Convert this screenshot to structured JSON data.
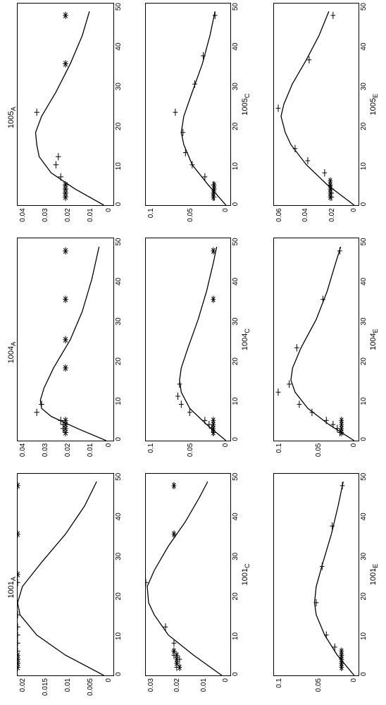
{
  "figure": {
    "rows": 3,
    "cols": 3,
    "background_color": "#ffffff",
    "font_family": "Arial",
    "title_fontsize": 11,
    "tick_fontsize": 10,
    "line_color": "#000000",
    "marker_color": "#000000",
    "line_width": 1.3,
    "marker_size": 4,
    "panels": [
      {
        "id": "p1001A",
        "title": "1001_A",
        "xlabel": "",
        "xlim": [
          0,
          50
        ],
        "xticks": [
          0,
          10,
          20,
          30,
          40,
          50
        ],
        "ylim": [
          0,
          0.02
        ],
        "yticks": [
          0.02,
          0.015,
          0.01,
          0.005,
          0
        ],
        "curve": [
          [
            0,
            0.002
          ],
          [
            5,
            0.01
          ],
          [
            10,
            0.016
          ],
          [
            15,
            0.0195
          ],
          [
            18,
            0.02
          ],
          [
            22,
            0.019
          ],
          [
            28,
            0.015
          ],
          [
            35,
            0.01
          ],
          [
            42,
            0.006
          ],
          [
            48,
            0.0035
          ]
        ],
        "plus": [
          [
            2,
            0.02
          ],
          [
            3,
            0.02
          ],
          [
            4,
            0.02
          ],
          [
            6,
            0.02
          ],
          [
            8,
            0.02
          ],
          [
            10,
            0.02
          ],
          [
            12,
            0.02
          ],
          [
            15,
            0.02
          ],
          [
            23,
            0.02
          ]
        ],
        "star": [
          [
            2,
            0.02
          ],
          [
            3,
            0.02
          ],
          [
            4,
            0.02
          ],
          [
            5,
            0.02
          ],
          [
            25,
            0.02
          ],
          [
            35,
            0.02
          ],
          [
            47,
            0.02
          ]
        ]
      },
      {
        "id": "p1004A",
        "title": "1004_A",
        "xlabel": "",
        "xlim": [
          0,
          50
        ],
        "xticks": [
          0,
          10,
          20,
          30,
          40,
          50
        ],
        "ylim": [
          0,
          0.04
        ],
        "yticks": [
          0.04,
          0.03,
          0.02,
          0.01,
          0
        ],
        "curve": [
          [
            0,
            0.003
          ],
          [
            3,
            0.015
          ],
          [
            6,
            0.026
          ],
          [
            8,
            0.03
          ],
          [
            10,
            0.0305
          ],
          [
            13,
            0.029
          ],
          [
            18,
            0.025
          ],
          [
            25,
            0.018
          ],
          [
            32,
            0.013
          ],
          [
            40,
            0.009
          ],
          [
            48,
            0.006
          ]
        ],
        "plus": [
          [
            2,
            0.02
          ],
          [
            3,
            0.021
          ],
          [
            4,
            0.021
          ],
          [
            5,
            0.022
          ],
          [
            7,
            0.032
          ],
          [
            9,
            0.03
          ]
        ],
        "star": [
          [
            2,
            0.02
          ],
          [
            3,
            0.02
          ],
          [
            4,
            0.02
          ],
          [
            5,
            0.02
          ],
          [
            18,
            0.02
          ],
          [
            25,
            0.02
          ],
          [
            35,
            0.02
          ],
          [
            47,
            0.02
          ]
        ]
      },
      {
        "id": "p1005A",
        "title": "1005_A",
        "xlabel": "",
        "xlim": [
          0,
          50
        ],
        "xticks": [
          0,
          10,
          20,
          30,
          40,
          50
        ],
        "ylim": [
          0,
          0.04
        ],
        "yticks": [
          0.04,
          0.03,
          0.02,
          0.01,
          0
        ],
        "curve": [
          [
            0,
            0.004
          ],
          [
            4,
            0.016
          ],
          [
            8,
            0.026
          ],
          [
            12,
            0.031
          ],
          [
            15,
            0.032
          ],
          [
            18,
            0.0325
          ],
          [
            22,
            0.03
          ],
          [
            28,
            0.024
          ],
          [
            35,
            0.018
          ],
          [
            42,
            0.013
          ],
          [
            48,
            0.01
          ]
        ],
        "plus": [
          [
            2,
            0.02
          ],
          [
            3,
            0.02
          ],
          [
            4,
            0.02
          ],
          [
            5,
            0.02
          ],
          [
            7,
            0.022
          ],
          [
            10,
            0.024
          ],
          [
            12,
            0.023
          ],
          [
            23,
            0.032
          ]
        ],
        "star": [
          [
            2,
            0.02
          ],
          [
            3,
            0.02
          ],
          [
            4,
            0.02
          ],
          [
            5,
            0.02
          ],
          [
            35,
            0.02
          ],
          [
            47,
            0.02
          ]
        ]
      },
      {
        "id": "p1001C",
        "title": "",
        "xlabel": "1001_C",
        "xlim": [
          0,
          50
        ],
        "xticks": [
          0,
          10,
          20,
          30,
          40,
          50
        ],
        "ylim": [
          0,
          0.03
        ],
        "yticks": [
          0.03,
          0.02,
          0.01,
          0
        ],
        "curve": [
          [
            0,
            0.003
          ],
          [
            5,
            0.013
          ],
          [
            10,
            0.022
          ],
          [
            15,
            0.027
          ],
          [
            18,
            0.029
          ],
          [
            22,
            0.0295
          ],
          [
            26,
            0.027
          ],
          [
            32,
            0.022
          ],
          [
            38,
            0.016
          ],
          [
            44,
            0.011
          ],
          [
            48,
            0.008
          ]
        ],
        "plus": [
          [
            2,
            0.019
          ],
          [
            3,
            0.019
          ],
          [
            4,
            0.018
          ],
          [
            5,
            0.02
          ],
          [
            6,
            0.02
          ],
          [
            8,
            0.02
          ],
          [
            12,
            0.023
          ],
          [
            23,
            0.03
          ]
        ],
        "star": [
          [
            2,
            0.018
          ],
          [
            3,
            0.019
          ],
          [
            4,
            0.019
          ],
          [
            5,
            0.019
          ],
          [
            6,
            0.02
          ],
          [
            35,
            0.02
          ],
          [
            47,
            0.02
          ]
        ]
      },
      {
        "id": "p1004C",
        "title": "",
        "xlabel": "1004_C",
        "xlim": [
          0,
          50
        ],
        "xticks": [
          0,
          10,
          20,
          30,
          40,
          50
        ],
        "ylim": [
          0,
          0.1
        ],
        "yticks": [
          0.1,
          0.05,
          0
        ],
        "curve": [
          [
            0,
            0.005
          ],
          [
            4,
            0.028
          ],
          [
            8,
            0.048
          ],
          [
            12,
            0.058
          ],
          [
            15,
            0.06
          ],
          [
            18,
            0.058
          ],
          [
            23,
            0.05
          ],
          [
            30,
            0.038
          ],
          [
            37,
            0.028
          ],
          [
            44,
            0.02
          ],
          [
            48,
            0.016
          ]
        ],
        "plus": [
          [
            2,
            0.02
          ],
          [
            3,
            0.022
          ],
          [
            4,
            0.025
          ],
          [
            5,
            0.03
          ],
          [
            7,
            0.048
          ],
          [
            9,
            0.058
          ],
          [
            11,
            0.062
          ],
          [
            14,
            0.06
          ]
        ],
        "star": [
          [
            2,
            0.02
          ],
          [
            3,
            0.02
          ],
          [
            4,
            0.02
          ],
          [
            5,
            0.02
          ],
          [
            35,
            0.02
          ],
          [
            47,
            0.02
          ]
        ]
      },
      {
        "id": "p1005C",
        "title": "",
        "xlabel": "1005_C",
        "xlim": [
          0,
          50
        ],
        "xticks": [
          0,
          10,
          20,
          30,
          40,
          50
        ],
        "ylim": [
          0,
          0.1
        ],
        "yticks": [
          0.1,
          0.05,
          0
        ],
        "curve": [
          [
            0,
            0.005
          ],
          [
            5,
            0.026
          ],
          [
            10,
            0.045
          ],
          [
            15,
            0.055
          ],
          [
            18,
            0.058
          ],
          [
            22,
            0.055
          ],
          [
            28,
            0.045
          ],
          [
            35,
            0.033
          ],
          [
            42,
            0.024
          ],
          [
            48,
            0.018
          ]
        ],
        "plus": [
          [
            2,
            0.019
          ],
          [
            3,
            0.019
          ],
          [
            4,
            0.019
          ],
          [
            5,
            0.02
          ],
          [
            7,
            0.03
          ],
          [
            10,
            0.045
          ],
          [
            13,
            0.053
          ],
          [
            18,
            0.056
          ],
          [
            23,
            0.065
          ],
          [
            30,
            0.042
          ],
          [
            37,
            0.032
          ],
          [
            47,
            0.018
          ]
        ],
        "star": [
          [
            2,
            0.02
          ],
          [
            3,
            0.02
          ],
          [
            4,
            0.019
          ],
          [
            5,
            0.019
          ]
        ]
      },
      {
        "id": "p1001E",
        "title": "",
        "xlabel": "1001_E",
        "xlim": [
          0,
          50
        ],
        "xticks": [
          0,
          10,
          20,
          30,
          40,
          50
        ],
        "ylim": [
          0,
          0.1
        ],
        "yticks": [
          0.1,
          0.05,
          0
        ],
        "curve": [
          [
            0,
            0.005
          ],
          [
            5,
            0.025
          ],
          [
            10,
            0.04
          ],
          [
            15,
            0.05
          ],
          [
            18,
            0.052
          ],
          [
            22,
            0.05
          ],
          [
            28,
            0.042
          ],
          [
            35,
            0.032
          ],
          [
            42,
            0.024
          ],
          [
            48,
            0.018
          ]
        ],
        "plus": [
          [
            2,
            0.02
          ],
          [
            3,
            0.02
          ],
          [
            4,
            0.02
          ],
          [
            5,
            0.02
          ],
          [
            7,
            0.028
          ],
          [
            10,
            0.038
          ],
          [
            18,
            0.05
          ],
          [
            27,
            0.043
          ],
          [
            37,
            0.031
          ],
          [
            47,
            0.019
          ]
        ],
        "star": [
          [
            2,
            0.02
          ],
          [
            3,
            0.02
          ],
          [
            4,
            0.02
          ],
          [
            5,
            0.02
          ],
          [
            6,
            0.02
          ]
        ]
      },
      {
        "id": "p1004E",
        "title": "",
        "xlabel": "1004_E",
        "xlim": [
          0,
          50
        ],
        "xticks": [
          0,
          10,
          20,
          30,
          40,
          50
        ],
        "ylim": [
          0,
          0.1
        ],
        "yticks": [
          0.1,
          0.05,
          0
        ],
        "curve": [
          [
            0,
            0.005
          ],
          [
            4,
            0.035
          ],
          [
            8,
            0.06
          ],
          [
            12,
            0.075
          ],
          [
            15,
            0.08
          ],
          [
            18,
            0.078
          ],
          [
            23,
            0.068
          ],
          [
            30,
            0.05
          ],
          [
            37,
            0.037
          ],
          [
            44,
            0.027
          ],
          [
            48,
            0.021
          ]
        ],
        "plus": [
          [
            2,
            0.022
          ],
          [
            3,
            0.025
          ],
          [
            4,
            0.03
          ],
          [
            5,
            0.038
          ],
          [
            7,
            0.055
          ],
          [
            9,
            0.07
          ],
          [
            12,
            0.095
          ],
          [
            14,
            0.082
          ],
          [
            23,
            0.073
          ],
          [
            35,
            0.042
          ],
          [
            47,
            0.022
          ]
        ],
        "star": [
          [
            2,
            0.02
          ],
          [
            3,
            0.02
          ],
          [
            4,
            0.02
          ],
          [
            5,
            0.02
          ]
        ]
      },
      {
        "id": "p1005E",
        "title": "",
        "xlabel": "1005_E",
        "xlim": [
          0,
          50
        ],
        "xticks": [
          0,
          10,
          20,
          30,
          40,
          50
        ],
        "ylim": [
          0,
          0.06
        ],
        "yticks": [
          0.06,
          0.04,
          0.02,
          0
        ],
        "curve": [
          [
            0,
            0.003
          ],
          [
            5,
            0.022
          ],
          [
            10,
            0.037
          ],
          [
            15,
            0.048
          ],
          [
            18,
            0.052
          ],
          [
            22,
            0.055
          ],
          [
            25,
            0.053
          ],
          [
            30,
            0.047
          ],
          [
            36,
            0.037
          ],
          [
            42,
            0.028
          ],
          [
            48,
            0.021
          ]
        ],
        "plus": [
          [
            2,
            0.019
          ],
          [
            3,
            0.019
          ],
          [
            4,
            0.019
          ],
          [
            5,
            0.02
          ],
          [
            8,
            0.024
          ],
          [
            11,
            0.036
          ],
          [
            14,
            0.045
          ],
          [
            24,
            0.057
          ],
          [
            36,
            0.035
          ],
          [
            47,
            0.018
          ]
        ],
        "star": [
          [
            2,
            0.02
          ],
          [
            3,
            0.02
          ],
          [
            4,
            0.02
          ],
          [
            5,
            0.02
          ],
          [
            6,
            0.02
          ]
        ]
      }
    ]
  }
}
